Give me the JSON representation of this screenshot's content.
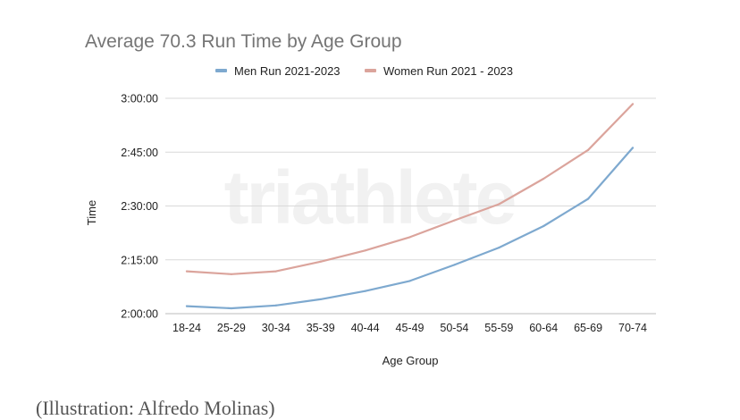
{
  "chart_data": {
    "type": "line",
    "title": "Average 70.3 Run Time by Age Group",
    "xlabel": "Age Group",
    "ylabel": "Time",
    "categories": [
      "18-24",
      "25-29",
      "30-34",
      "35-39",
      "40-44",
      "45-49",
      "50-54",
      "55-59",
      "60-64",
      "65-69",
      "70-74"
    ],
    "y_unit": "minutes",
    "ylim": [
      120,
      180
    ],
    "yticks": [
      {
        "value": 120,
        "label": "2:00:00"
      },
      {
        "value": 135,
        "label": "2:15:00"
      },
      {
        "value": 150,
        "label": "2:30:00"
      },
      {
        "value": 165,
        "label": "2:45:00"
      },
      {
        "value": 180,
        "label": "3:00:00"
      }
    ],
    "grid": true,
    "legend_position": "top",
    "series": [
      {
        "name": "Men Run 2021-2023",
        "color": "#7ea9cf",
        "values": [
          122.1,
          121.5,
          122.3,
          124.0,
          126.3,
          129.1,
          133.6,
          138.4,
          144.4,
          152.0,
          166.2
        ]
      },
      {
        "name": "Women Run 2021 - 2023",
        "color": "#dba49c",
        "values": [
          131.8,
          131.0,
          131.8,
          134.5,
          137.6,
          141.3,
          146.0,
          150.5,
          157.6,
          165.6,
          178.4
        ]
      }
    ]
  },
  "watermark": "triathlete",
  "caption": "(Illustration: Alfredo Molinas)"
}
